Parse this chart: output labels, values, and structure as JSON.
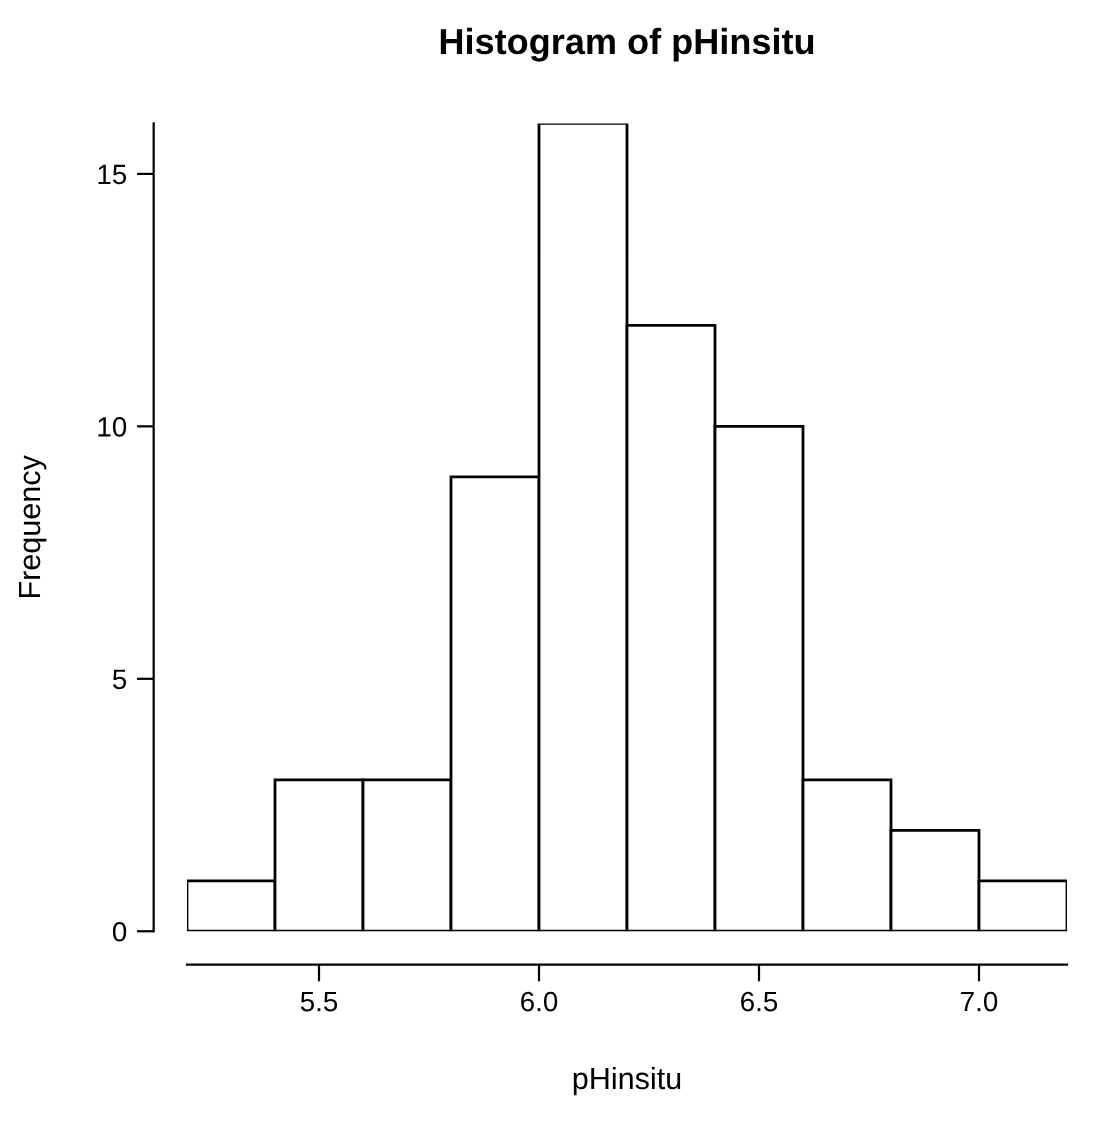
{
  "chart_data": {
    "type": "histogram",
    "title": "Histogram of pHinsitu",
    "xlabel": "pHinsitu",
    "ylabel": "Frequency",
    "bins": [
      5.2,
      5.4,
      5.6,
      5.8,
      6.0,
      6.2,
      6.4,
      6.6,
      6.8,
      7.0,
      7.2
    ],
    "values": [
      1,
      3,
      3,
      9,
      16,
      12,
      10,
      3,
      2,
      1
    ],
    "color": "#ffffff",
    "xlim": [
      5.2,
      7.2
    ],
    "xticks": [
      5.5,
      {
        "value": 6,
        "label": "6.0"
      },
      6.5,
      {
        "value": 7,
        "label": "7.0"
      }
    ],
    "ylim": [
      0,
      16
    ],
    "yticks": [
      0,
      5,
      10,
      15
    ],
    "grid": false
  }
}
